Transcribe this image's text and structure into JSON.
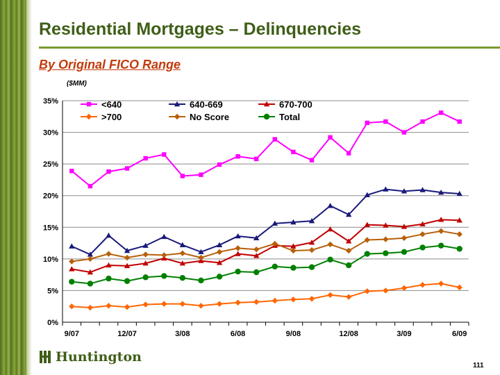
{
  "slide": {
    "title": "Residential Mortgages – Delinquencies",
    "subtitle": "By Original FICO Range",
    "unit": "($MM)",
    "logo_text": "Huntington",
    "page_number": "111"
  },
  "colors": {
    "title": "#3f5e17",
    "subtitle": "#c23a0a",
    "sidebar": "#6b8a2a"
  },
  "chart_data": {
    "type": "line",
    "x": [
      "9/07",
      "10/07",
      "11/07",
      "12/07",
      "1/08",
      "2/08",
      "3/08",
      "4/08",
      "5/08",
      "6/08",
      "7/08",
      "8/08",
      "9/08",
      "10/08",
      "11/08",
      "12/08",
      "1/09",
      "2/09",
      "3/09",
      "4/09",
      "5/09",
      "6/09"
    ],
    "xtick_labels": [
      "9/07",
      "12/07",
      "3/08",
      "6/08",
      "9/08",
      "12/08",
      "3/09",
      "6/09"
    ],
    "ylim": [
      0,
      35
    ],
    "yticks": [
      0,
      5,
      10,
      15,
      20,
      25,
      30,
      35
    ],
    "ytick_labels": [
      "0%",
      "5%",
      "10%",
      "15%",
      "20%",
      "25%",
      "30%",
      "35%"
    ],
    "grid": true,
    "legend_position": "top",
    "series": [
      {
        "name": "<640",
        "color": "#ff00ff",
        "marker": "square",
        "values": [
          23.9,
          21.5,
          23.8,
          24.3,
          25.9,
          26.5,
          23.1,
          23.3,
          24.9,
          26.2,
          25.8,
          28.9,
          26.9,
          25.6,
          29.2,
          26.7,
          31.5,
          31.7,
          30.0,
          31.7,
          33.1,
          31.7
        ]
      },
      {
        "name": "640-669",
        "color": "#1a1a7a",
        "marker": "triangle",
        "values": [
          12.0,
          10.7,
          13.7,
          11.3,
          12.1,
          13.5,
          12.2,
          11.1,
          12.2,
          13.6,
          13.3,
          15.6,
          15.8,
          16.0,
          18.4,
          17.0,
          20.1,
          21.0,
          20.7,
          20.9,
          20.5,
          20.3
        ]
      },
      {
        "name": "670-700",
        "color": "#c00000",
        "marker": "triangle",
        "values": [
          8.4,
          7.9,
          9.0,
          8.9,
          9.3,
          10.1,
          9.3,
          9.7,
          9.4,
          10.8,
          10.5,
          12.1,
          12.0,
          12.6,
          14.7,
          12.8,
          15.4,
          15.3,
          15.1,
          15.5,
          16.2,
          16.1
        ]
      },
      {
        "name": ">700",
        "color": "#ff6600",
        "marker": "diamond",
        "values": [
          2.5,
          2.3,
          2.6,
          2.4,
          2.8,
          2.9,
          2.9,
          2.6,
          2.9,
          3.1,
          3.2,
          3.4,
          3.6,
          3.7,
          4.3,
          4.0,
          4.9,
          5.0,
          5.4,
          5.9,
          6.1,
          5.5
        ]
      },
      {
        "name": "No Score",
        "color": "#b8600a",
        "marker": "diamond",
        "values": [
          9.6,
          10.0,
          10.8,
          10.2,
          10.7,
          10.6,
          10.9,
          10.2,
          11.1,
          11.7,
          11.5,
          12.4,
          11.3,
          11.4,
          12.3,
          11.3,
          13.0,
          13.1,
          13.3,
          13.9,
          14.4,
          13.9
        ]
      },
      {
        "name": "Total",
        "color": "#008000",
        "marker": "circle",
        "values": [
          6.4,
          6.1,
          6.9,
          6.5,
          7.1,
          7.3,
          7.0,
          6.6,
          7.2,
          8.0,
          7.9,
          8.8,
          8.6,
          8.7,
          9.9,
          9.0,
          10.8,
          10.9,
          11.1,
          11.8,
          12.1,
          11.6
        ]
      }
    ]
  }
}
